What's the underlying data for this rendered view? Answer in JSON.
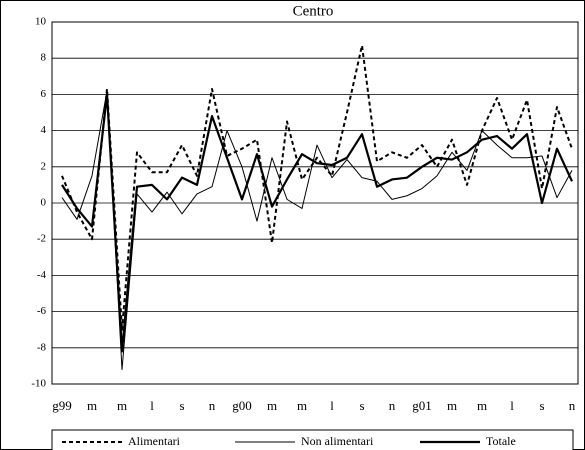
{
  "chart_data": {
    "type": "line",
    "title": "Centro",
    "categories": [
      "g99",
      null,
      "m",
      null,
      "m",
      null,
      "l",
      null,
      "s",
      null,
      "n",
      null,
      "g00",
      null,
      "m",
      null,
      "m",
      null,
      "l",
      null,
      "s",
      null,
      "n",
      null,
      "g01",
      null,
      "m",
      null,
      "m",
      null,
      "l",
      null,
      "s",
      null,
      "n"
    ],
    "series": [
      {
        "name": "Alimentari",
        "color": "#000000",
        "values": [
          1.5,
          -0.5,
          -2.0,
          6.3,
          -7.0,
          2.8,
          1.7,
          1.7,
          3.2,
          1.5,
          6.3,
          2.6,
          3.0,
          3.5,
          -2.2,
          4.5,
          1.3,
          2.5,
          1.5,
          5.0,
          8.7,
          2.3,
          2.8,
          2.5,
          3.2,
          2.0,
          3.5,
          1.0,
          4.0,
          5.8,
          3.5,
          5.7,
          0.8,
          5.3,
          3.0
        ]
      },
      {
        "name": "Non alimentari",
        "color": "#000000",
        "values": [
          0.3,
          -0.9,
          1.5,
          6.2,
          -9.2,
          0.5,
          -0.5,
          0.6,
          -0.6,
          0.5,
          0.9,
          4.0,
          2.0,
          -1.0,
          2.5,
          0.2,
          -0.3,
          3.2,
          1.4,
          2.4,
          1.4,
          1.2,
          0.2,
          0.4,
          0.8,
          1.5,
          2.8,
          1.8,
          4.0,
          3.2,
          2.5,
          2.5,
          2.6,
          0.3,
          1.8
        ]
      },
      {
        "name": "Totale",
        "color": "#000000",
        "values": [
          1.0,
          -0.3,
          -1.3,
          6.0,
          -8.2,
          0.9,
          1.0,
          0.2,
          1.4,
          1.0,
          4.8,
          2.5,
          0.2,
          2.7,
          -0.2,
          1.3,
          2.7,
          2.2,
          2.1,
          2.5,
          3.8,
          0.9,
          1.3,
          1.4,
          2.0,
          2.5,
          2.4,
          2.8,
          3.5,
          3.7,
          3.0,
          3.8,
          0.0,
          3.0,
          1.2
        ]
      }
    ],
    "ylim": [
      -10,
      10
    ],
    "yticks": [
      -10,
      -8,
      -6,
      -4,
      -2,
      0,
      2,
      4,
      6,
      8,
      10
    ],
    "grid": true,
    "legend": "bottom"
  }
}
